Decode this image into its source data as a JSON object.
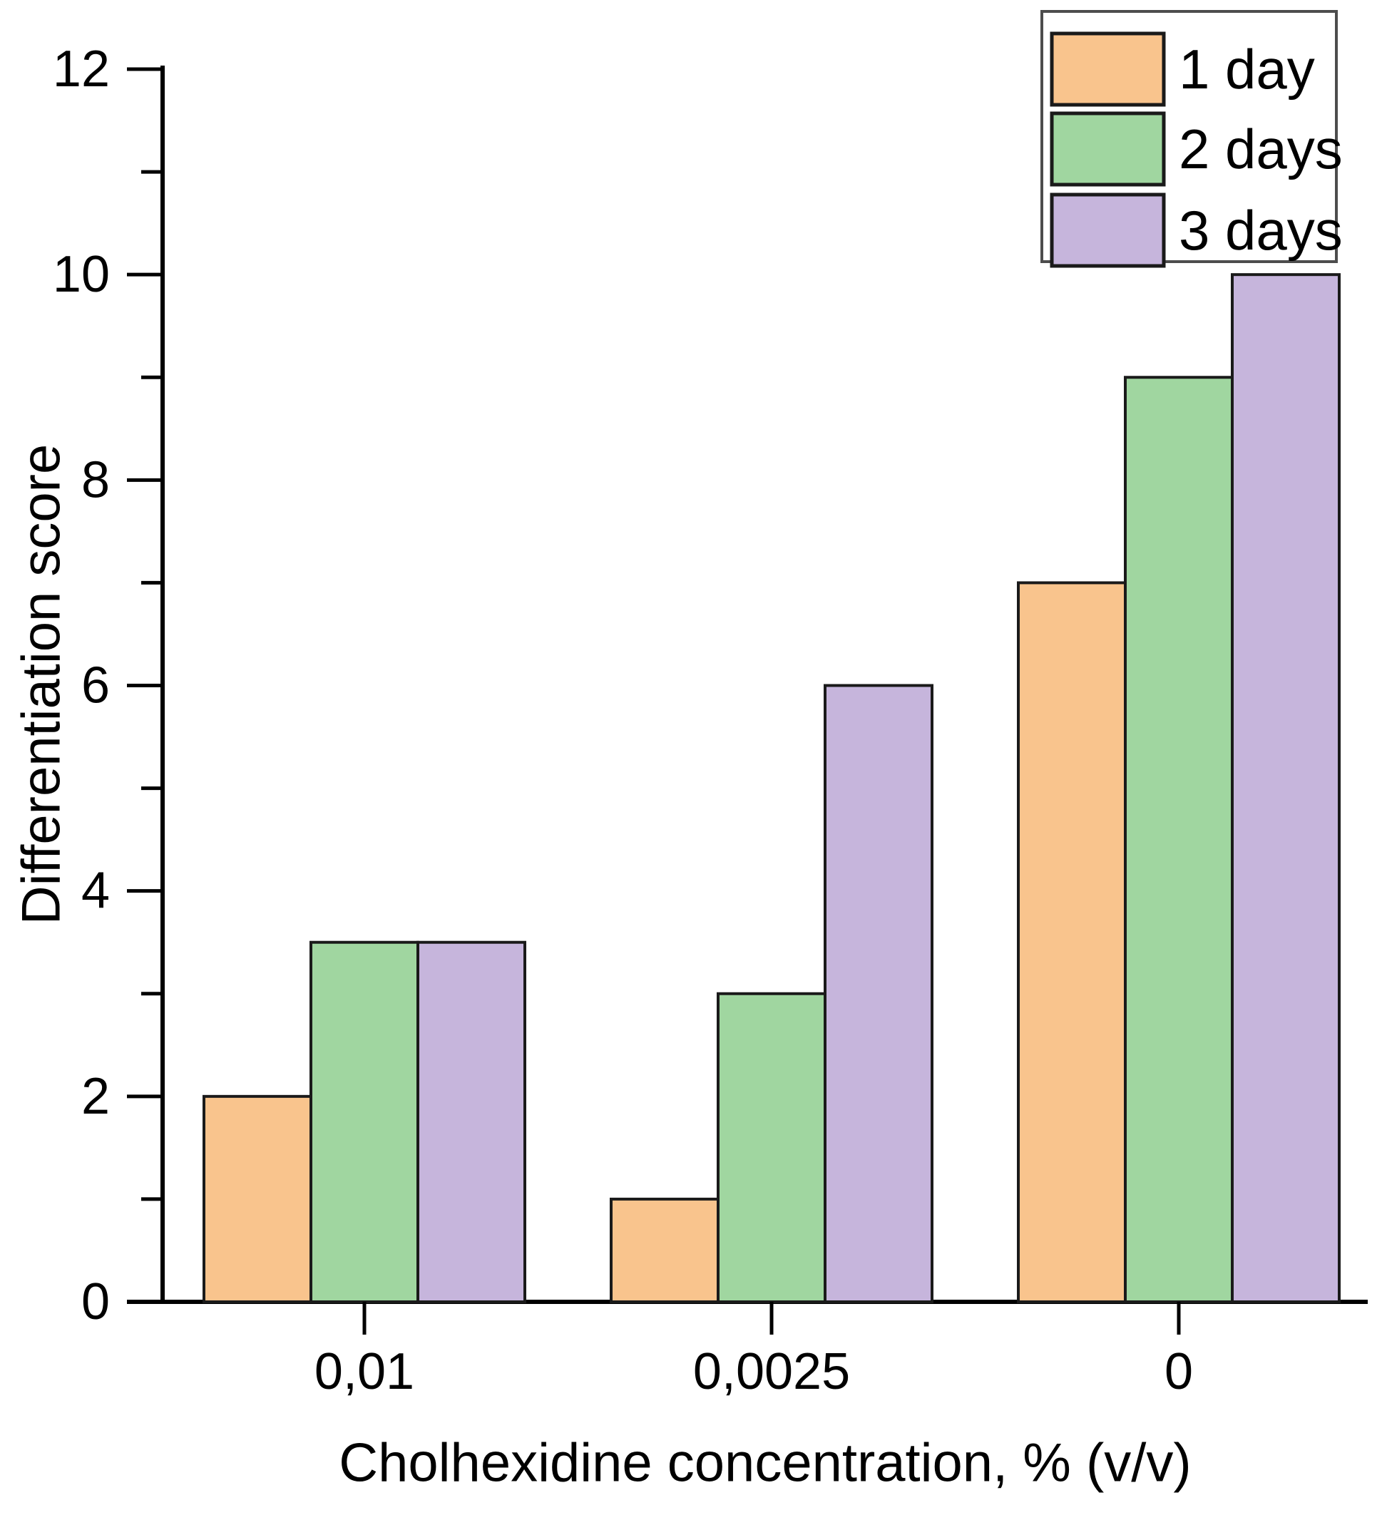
{
  "chart_data": {
    "type": "bar",
    "title": "",
    "xlabel": "Cholhexidine concentration, % (v/v)",
    "ylabel": "Differentiation score",
    "categories": [
      "0,01",
      "0,0025",
      "0"
    ],
    "series": [
      {
        "name": "1 day",
        "color": "#F9C48D",
        "values": [
          2,
          1,
          7
        ]
      },
      {
        "name": "2 days",
        "color": "#A0D6A0",
        "values": [
          3.5,
          3,
          9
        ]
      },
      {
        "name": "3 days",
        "color": "#C6B5DC",
        "values": [
          3.5,
          6,
          10
        ]
      }
    ],
    "ylim": [
      0,
      12
    ],
    "yticks_major": [
      0,
      2,
      4,
      6,
      8,
      10,
      12
    ],
    "yticks_minor": [
      1,
      3,
      5,
      7,
      9,
      11
    ],
    "grid": false,
    "legend_position": "top-right",
    "bar_edge_color": "#1A1A1A",
    "axis_color": "#000000",
    "legend_border_color": "#4D4D4D",
    "background": "#FFFFFF"
  }
}
